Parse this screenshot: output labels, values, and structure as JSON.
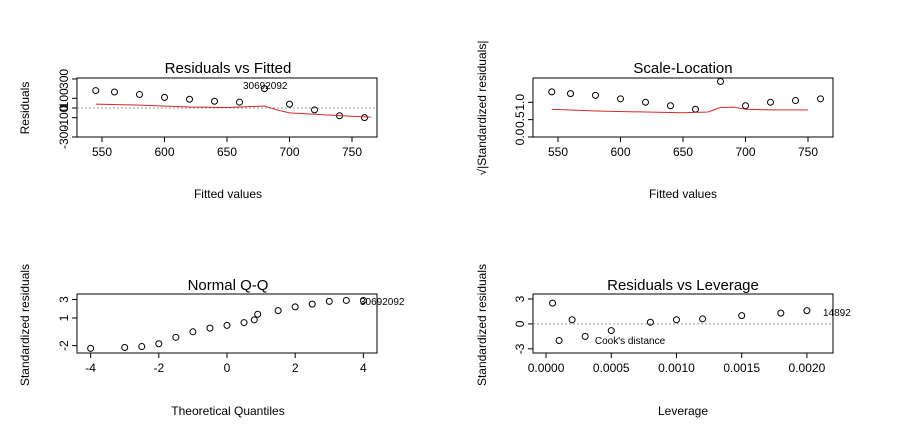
{
  "chart_data": [
    {
      "type": "scatter",
      "title": "Residuals vs Fitted",
      "xlabel": "Fitted values",
      "ylabel": "Residuals",
      "xlim": [
        530,
        770
      ],
      "ylim": [
        -300,
        310
      ],
      "xticks": [
        550,
        600,
        650,
        700,
        750
      ],
      "yticks": [
        -300,
        -100,
        0,
        100,
        300
      ],
      "yticklabels": [
        "-300",
        "-100",
        "0",
        "100",
        "300"
      ],
      "point_labels": [
        "30692092"
      ],
      "reference_line": 0,
      "smooth_line": {
        "x": [
          545,
          580,
          620,
          650,
          670,
          680,
          690,
          700,
          720,
          750,
          765
        ],
        "y": [
          40,
          30,
          10,
          5,
          15,
          20,
          -20,
          -50,
          -65,
          -85,
          -95
        ]
      },
      "series": [
        {
          "x": [
            545,
            560,
            580,
            600,
            620,
            640,
            660,
            680,
            700,
            720,
            740,
            760
          ],
          "y": [
            180,
            165,
            140,
            110,
            90,
            70,
            60,
            200,
            40,
            -20,
            -80,
            -100
          ]
        }
      ]
    },
    {
      "type": "scatter",
      "title": "Scale-Location",
      "xlabel": "Fitted values",
      "ylabel": "√|Standardized residuals|",
      "xlim": [
        530,
        770
      ],
      "ylim": [
        0,
        1.7
      ],
      "xticks": [
        550,
        600,
        650,
        700,
        750
      ],
      "yticks": [
        0.0,
        0.5,
        1.0
      ],
      "yticklabels": [
        "0.0",
        "0.5",
        "1.0"
      ],
      "smooth_line": {
        "x": [
          545,
          580,
          620,
          650,
          670,
          680,
          690,
          700,
          720,
          750
        ],
        "y": [
          0.8,
          0.75,
          0.72,
          0.7,
          0.72,
          0.85,
          0.86,
          0.8,
          0.78,
          0.78
        ]
      },
      "series": [
        {
          "x": [
            545,
            560,
            580,
            600,
            620,
            640,
            660,
            680,
            700,
            720,
            740,
            760
          ],
          "y": [
            1.3,
            1.25,
            1.2,
            1.1,
            1.0,
            0.9,
            0.8,
            1.6,
            0.9,
            1.0,
            1.05,
            1.1
          ]
        }
      ]
    },
    {
      "type": "scatter",
      "title": "Normal Q-Q",
      "xlabel": "Theoretical Quantiles",
      "ylabel": "Standardized residuals",
      "xlim": [
        -4.4,
        4.4
      ],
      "ylim": [
        -2.8,
        3.6
      ],
      "xticks": [
        -4,
        -2,
        0,
        2,
        4
      ],
      "yticks": [
        -2,
        1,
        3
      ],
      "yticklabels": [
        "-2",
        "1",
        "3"
      ],
      "point_labels": [
        "30692092"
      ],
      "series": [
        {
          "x": [
            -4.0,
            -3.0,
            -2.5,
            -2.0,
            -1.5,
            -1.0,
            -0.5,
            0.0,
            0.5,
            0.8,
            0.9,
            1.5,
            2.0,
            2.5,
            3.0,
            3.5,
            4.0
          ],
          "y": [
            -2.3,
            -2.2,
            -2.1,
            -1.8,
            -1.1,
            -0.5,
            -0.1,
            0.2,
            0.5,
            0.8,
            1.4,
            1.8,
            2.2,
            2.5,
            2.8,
            2.9,
            2.9
          ]
        }
      ]
    },
    {
      "type": "scatter",
      "title": "Residuals vs Leverage",
      "xlabel": "Leverage",
      "ylabel": "Standardized residuals",
      "xlim": [
        -0.0001,
        0.0022
      ],
      "ylim": [
        -3.5,
        3.6
      ],
      "xticks": [
        0.0,
        0.0005,
        0.001,
        0.0015,
        0.002
      ],
      "xticklabels": [
        "0.0000",
        "0.0005",
        "0.0010",
        "0.0015",
        "0.0020"
      ],
      "yticks": [
        -3,
        0,
        3
      ],
      "yticklabels": [
        "-3",
        "0",
        "3"
      ],
      "point_labels": [
        "14892",
        "Cook's distance"
      ],
      "reference_line": 0,
      "series": [
        {
          "x": [
            5e-05,
            0.0001,
            0.0002,
            0.0003,
            0.0005,
            0.0008,
            0.001,
            0.0012,
            0.0015,
            0.0018,
            0.002
          ],
          "y": [
            2.5,
            -2.0,
            0.5,
            -1.5,
            -0.8,
            0.2,
            0.5,
            0.6,
            1.0,
            1.3,
            1.6
          ]
        }
      ]
    }
  ]
}
